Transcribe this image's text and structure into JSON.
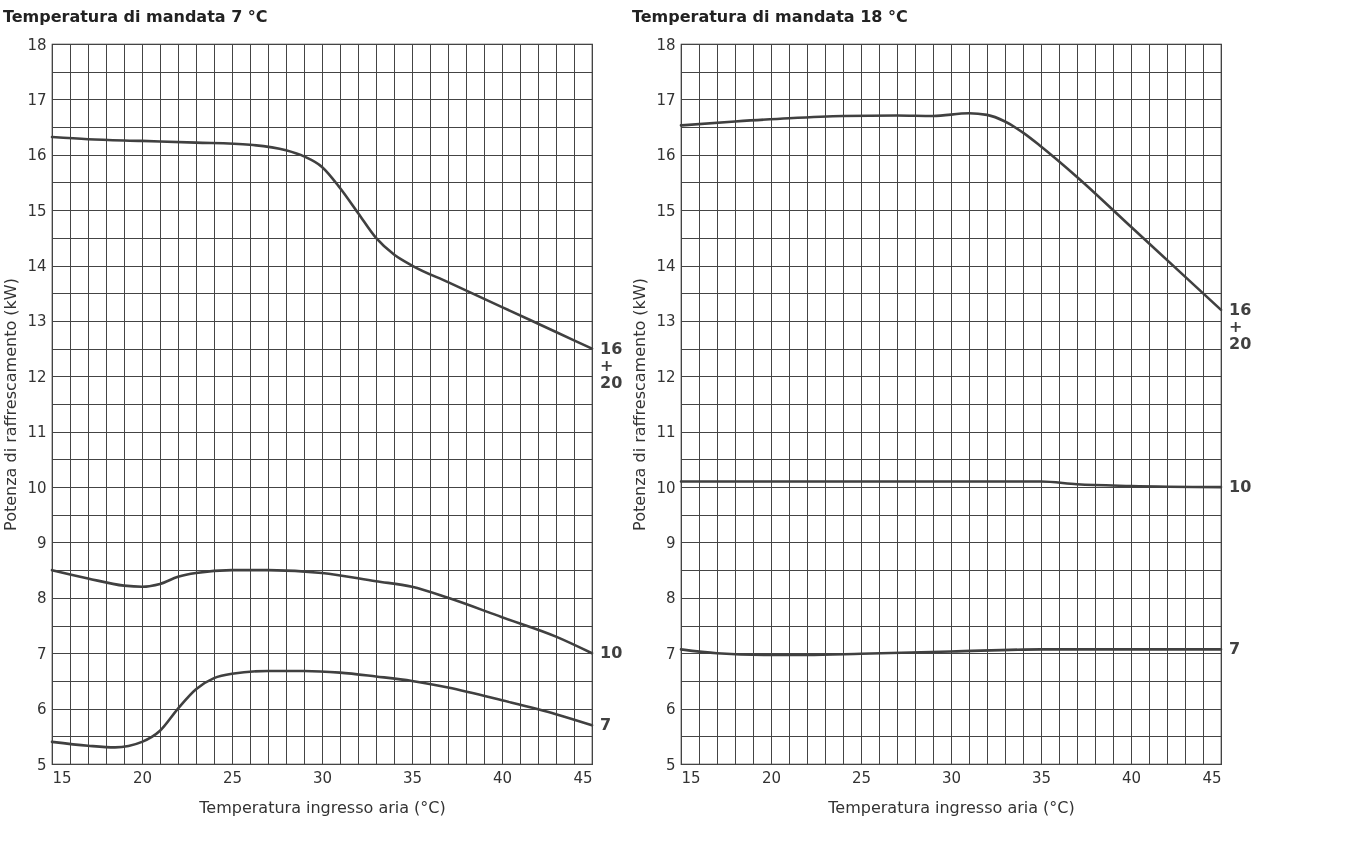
{
  "chart_data": [
    {
      "type": "line",
      "title": "Temperatura di mandata  7 °C",
      "xlabel": "Temperatura ingresso aria (°C)",
      "ylabel": "Potenza di raffrescamento (kW)",
      "xlim": [
        15,
        45
      ],
      "ylim": [
        5,
        18
      ],
      "xticks": [
        15,
        {
          "value": 16,
          "label": null
        },
        {
          "value": 17,
          "label": null
        },
        {
          "value": 18,
          "label": null
        },
        {
          "value": 19,
          "label": null
        },
        20,
        {
          "value": 21,
          "label": null
        },
        {
          "value": 22,
          "label": null
        },
        {
          "value": 23,
          "label": null
        },
        {
          "value": 24,
          "label": null
        },
        25,
        {
          "value": 26,
          "label": null
        },
        {
          "value": 27,
          "label": null
        },
        {
          "value": 28,
          "label": null
        },
        {
          "value": 29,
          "label": null
        },
        30,
        {
          "value": 31,
          "label": null
        },
        {
          "value": 32,
          "label": null
        },
        {
          "value": 33,
          "label": null
        },
        {
          "value": 34,
          "label": null
        },
        35,
        {
          "value": 36,
          "label": null
        },
        {
          "value": 37,
          "label": null
        },
        {
          "value": 38,
          "label": null
        },
        {
          "value": 39,
          "label": null
        },
        40,
        {
          "value": 41,
          "label": null
        },
        {
          "value": 42,
          "label": null
        },
        {
          "value": 43,
          "label": null
        },
        {
          "value": 44,
          "label": null
        },
        45
      ],
      "yticks": [
        5,
        {
          "value": 5.5,
          "label": null
        },
        6,
        {
          "value": 6.5,
          "label": null
        },
        7,
        {
          "value": 7.5,
          "label": null
        },
        8,
        {
          "value": 8.5,
          "label": null
        },
        9,
        {
          "value": 9.5,
          "label": null
        },
        10,
        {
          "value": 10.5,
          "label": null
        },
        11,
        {
          "value": 11.5,
          "label": null
        },
        12,
        {
          "value": 12.5,
          "label": null
        },
        13,
        {
          "value": 13.5,
          "label": null
        },
        14,
        {
          "value": 14.5,
          "label": null
        },
        15,
        {
          "value": 15.5,
          "label": null
        },
        16,
        {
          "value": 16.5,
          "label": null
        },
        17,
        {
          "value": 17.5,
          "label": null
        },
        18
      ],
      "grid": true,
      "line_style": "solid",
      "series": [
        {
          "name": "16 + 20",
          "color": "#404040",
          "x": [
            15,
            17,
            20,
            23,
            26,
            28,
            29,
            30,
            31,
            32,
            33,
            34,
            35,
            37,
            40,
            43,
            45
          ],
          "values": [
            16.32,
            16.28,
            16.25,
            16.22,
            16.18,
            16.08,
            15.97,
            15.78,
            15.4,
            14.95,
            14.5,
            14.2,
            14.0,
            13.7,
            13.25,
            12.8,
            12.5
          ]
        },
        {
          "name": "10",
          "color": "#404040",
          "x": [
            15,
            17,
            19,
            20,
            21,
            22,
            23,
            25,
            27,
            30,
            33,
            35,
            37,
            40,
            43,
            45
          ],
          "values": [
            8.5,
            8.35,
            8.22,
            8.2,
            8.25,
            8.38,
            8.45,
            8.5,
            8.5,
            8.45,
            8.3,
            8.2,
            8.0,
            7.65,
            7.3,
            7.0
          ]
        },
        {
          "name": "7",
          "color": "#404040",
          "x": [
            15,
            17,
            18.5,
            20,
            21,
            22,
            23,
            24,
            25,
            27,
            29,
            31,
            33,
            35,
            37,
            40,
            43,
            45
          ],
          "values": [
            5.4,
            5.33,
            5.3,
            5.4,
            5.6,
            6.0,
            6.35,
            6.55,
            6.63,
            6.68,
            6.68,
            6.65,
            6.58,
            6.5,
            6.38,
            6.15,
            5.9,
            5.7
          ]
        }
      ]
    },
    {
      "type": "line",
      "title": "Temperatura di mandata  18 °C",
      "xlabel": "Temperatura ingresso aria (°C)",
      "ylabel": "Potenza di raffrescamento (kW)",
      "xlim": [
        15,
        45
      ],
      "ylim": [
        5,
        18
      ],
      "xticks": [
        15,
        {
          "value": 16,
          "label": null
        },
        {
          "value": 17,
          "label": null
        },
        {
          "value": 18,
          "label": null
        },
        {
          "value": 19,
          "label": null
        },
        20,
        {
          "value": 21,
          "label": null
        },
        {
          "value": 22,
          "label": null
        },
        {
          "value": 23,
          "label": null
        },
        {
          "value": 24,
          "label": null
        },
        25,
        {
          "value": 26,
          "label": null
        },
        {
          "value": 27,
          "label": null
        },
        {
          "value": 28,
          "label": null
        },
        {
          "value": 29,
          "label": null
        },
        30,
        {
          "value": 31,
          "label": null
        },
        {
          "value": 32,
          "label": null
        },
        {
          "value": 33,
          "label": null
        },
        {
          "value": 34,
          "label": null
        },
        35,
        {
          "value": 36,
          "label": null
        },
        {
          "value": 37,
          "label": null
        },
        {
          "value": 38,
          "label": null
        },
        {
          "value": 39,
          "label": null
        },
        40,
        {
          "value": 41,
          "label": null
        },
        {
          "value": 42,
          "label": null
        },
        {
          "value": 43,
          "label": null
        },
        {
          "value": 44,
          "label": null
        },
        45
      ],
      "yticks": [
        5,
        {
          "value": 5.5,
          "label": null
        },
        6,
        {
          "value": 6.5,
          "label": null
        },
        7,
        {
          "value": 7.5,
          "label": null
        },
        8,
        {
          "value": 8.5,
          "label": null
        },
        9,
        {
          "value": 9.5,
          "label": null
        },
        10,
        {
          "value": 10.5,
          "label": null
        },
        11,
        {
          "value": 11.5,
          "label": null
        },
        12,
        {
          "value": 12.5,
          "label": null
        },
        13,
        {
          "value": 13.5,
          "label": null
        },
        14,
        {
          "value": 14.5,
          "label": null
        },
        15,
        {
          "value": 15.5,
          "label": null
        },
        16,
        {
          "value": 16.5,
          "label": null
        },
        17,
        {
          "value": 17.5,
          "label": null
        },
        18
      ],
      "grid": true,
      "line_style": "solid",
      "series": [
        {
          "name": "16 + 20",
          "color": "#404040",
          "x": [
            15,
            18,
            21,
            24,
            27,
            29,
            31,
            32,
            33,
            34,
            35,
            37,
            40,
            43,
            45
          ],
          "values": [
            16.53,
            16.6,
            16.66,
            16.7,
            16.71,
            16.7,
            16.75,
            16.72,
            16.6,
            16.4,
            16.15,
            15.6,
            14.7,
            13.8,
            13.2
          ]
        },
        {
          "name": "10",
          "color": "#404040",
          "x": [
            15,
            20,
            25,
            30,
            35,
            37,
            40,
            45
          ],
          "values": [
            10.1,
            10.1,
            10.1,
            10.1,
            10.1,
            10.05,
            10.02,
            10.0
          ]
        },
        {
          "name": "7",
          "color": "#404040",
          "x": [
            15,
            17,
            20,
            22,
            25,
            30,
            35,
            40,
            45
          ],
          "values": [
            7.07,
            7.0,
            6.97,
            6.97,
            6.99,
            7.03,
            7.07,
            7.07,
            7.07
          ]
        }
      ]
    }
  ]
}
